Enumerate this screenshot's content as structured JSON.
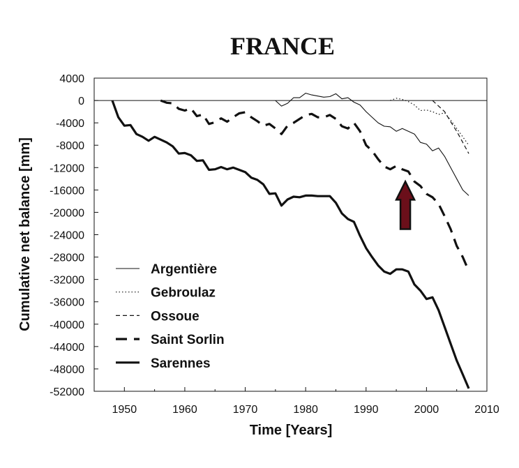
{
  "chart_data": {
    "type": "line",
    "title": "FRANCE",
    "xlabel": "Time [Years]",
    "ylabel": "Cumulative net balance [mm]",
    "xlim": [
      1945,
      2010
    ],
    "ylim": [
      -52000,
      4000
    ],
    "xticks": [
      1950,
      1960,
      1970,
      1980,
      1990,
      2000,
      2010
    ],
    "yticks": [
      4000,
      0,
      -4000,
      -8000,
      -12000,
      -16000,
      -20000,
      -24000,
      -28000,
      -32000,
      -36000,
      -40000,
      -44000,
      -48000,
      -52000
    ],
    "grid": false,
    "legend_position": "bottom-left",
    "arrow": {
      "x": 1996.5,
      "y_from": -23000,
      "y_to": -14500,
      "color": "#6b0f1a"
    },
    "series": [
      {
        "name": "Argentière",
        "style": "thin-solid",
        "x": [
          1975,
          1976,
          1977,
          1978,
          1979,
          1980,
          1981,
          1982,
          1983,
          1984,
          1985,
          1986,
          1987,
          1988,
          1989,
          1990,
          1991,
          1992,
          1993,
          1994,
          1995,
          1996,
          1997,
          1998,
          1999,
          2000,
          2001,
          2002,
          2003,
          2004,
          2005,
          2006,
          2007
        ],
        "y": [
          0,
          -1000,
          -500,
          500,
          500,
          1300,
          1000,
          800,
          600,
          700,
          1200,
          300,
          500,
          -300,
          -800,
          -2000,
          -3000,
          -4000,
          -4600,
          -4700,
          -5500,
          -5000,
          -5500,
          -6000,
          -7500,
          -7800,
          -9000,
          -8500,
          -10000,
          -12000,
          -14000,
          -16000,
          -17000
        ]
      },
      {
        "name": "Gebroulaz",
        "style": "dotted",
        "x": [
          1994,
          1995,
          1996,
          1997,
          1998,
          1999,
          2000,
          2001,
          2002,
          2003,
          2004,
          2005,
          2006,
          2007
        ],
        "y": [
          0,
          400,
          200,
          -200,
          -800,
          -1800,
          -1700,
          -2000,
          -2500,
          -2200,
          -3500,
          -5000,
          -6500,
          -8000
        ]
      },
      {
        "name": "Ossoue",
        "style": "dashed",
        "x": [
          2001,
          2002,
          2003,
          2004,
          2005,
          2006,
          2007
        ],
        "y": [
          0,
          -1000,
          -2000,
          -3800,
          -5500,
          -7500,
          -9500
        ]
      },
      {
        "name": "Saint Sorlin",
        "style": "thick-dashed",
        "x": [
          1956,
          1957,
          1958,
          1959,
          1960,
          1961,
          1962,
          1963,
          1964,
          1965,
          1966,
          1967,
          1968,
          1969,
          1970,
          1971,
          1972,
          1973,
          1974,
          1975,
          1976,
          1977,
          1978,
          1979,
          1980,
          1981,
          1982,
          1983,
          1984,
          1985,
          1986,
          1987,
          1988,
          1989,
          1990,
          1991,
          1992,
          1993,
          1994,
          1995,
          1996,
          1997,
          1998,
          1999,
          2000,
          2001,
          2002,
          2003,
          2004,
          2005,
          2006,
          2007
        ],
        "y": [
          0,
          -400,
          -500,
          -1500,
          -1800,
          -1400,
          -2800,
          -2500,
          -4200,
          -3900,
          -3200,
          -3800,
          -3000,
          -2300,
          -2100,
          -3000,
          -3700,
          -4500,
          -4200,
          -5000,
          -6000,
          -4500,
          -4000,
          -3300,
          -2600,
          -2400,
          -3000,
          -3000,
          -2600,
          -3300,
          -4600,
          -5000,
          -4000,
          -5500,
          -8000,
          -9000,
          -10500,
          -11800,
          -12300,
          -11700,
          -12300,
          -12700,
          -14500,
          -15300,
          -16700,
          -17300,
          -18500,
          -20700,
          -23000,
          -26000,
          -28000,
          -30500
        ]
      },
      {
        "name": "Sarennes",
        "style": "thick-solid",
        "x": [
          1948,
          1949,
          1950,
          1951,
          1952,
          1953,
          1954,
          1955,
          1956,
          1957,
          1958,
          1959,
          1960,
          1961,
          1962,
          1963,
          1964,
          1965,
          1966,
          1967,
          1968,
          1969,
          1970,
          1971,
          1972,
          1973,
          1974,
          1975,
          1976,
          1977,
          1978,
          1979,
          1980,
          1981,
          1982,
          1983,
          1984,
          1985,
          1986,
          1987,
          1988,
          1989,
          1990,
          1991,
          1992,
          1993,
          1994,
          1995,
          1996,
          1997,
          1998,
          1999,
          2000,
          2001,
          2002,
          2003,
          2004,
          2005,
          2006,
          2007
        ],
        "y": [
          0,
          -3000,
          -4500,
          -4400,
          -6000,
          -6500,
          -7200,
          -6500,
          -7000,
          -7500,
          -8200,
          -9500,
          -9400,
          -9800,
          -10800,
          -10700,
          -12400,
          -12300,
          -11900,
          -12300,
          -12000,
          -12400,
          -12800,
          -13800,
          -14200,
          -15000,
          -16700,
          -16600,
          -18800,
          -17700,
          -17200,
          -17300,
          -17000,
          -17000,
          -17100,
          -17100,
          -17100,
          -18300,
          -20200,
          -21200,
          -21700,
          -24200,
          -26400,
          -28000,
          -29500,
          -30600,
          -31000,
          -30200,
          -30200,
          -30600,
          -32900,
          -34000,
          -35500,
          -35200,
          -37500,
          -40500,
          -43500,
          -46500,
          -49000,
          -51500
        ]
      }
    ]
  }
}
